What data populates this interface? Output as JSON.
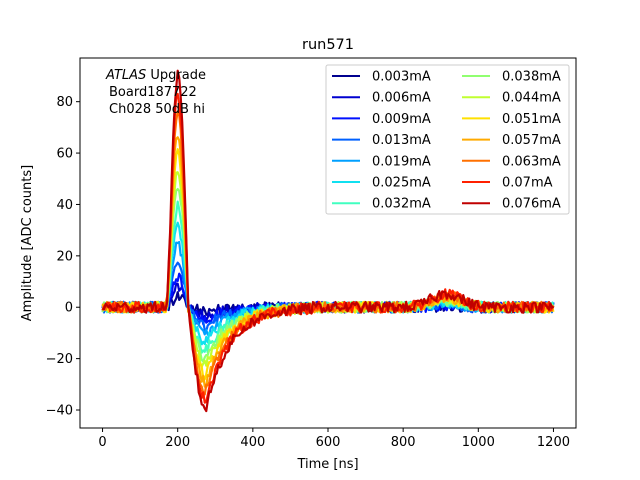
{
  "chart_data": {
    "type": "line",
    "title": "run571",
    "xlabel": "Time [ns]",
    "ylabel": "Amplitude [ADC counts]",
    "xlim": [
      -60,
      1260
    ],
    "ylim": [
      -47,
      97
    ],
    "xticks": [
      0,
      200,
      400,
      600,
      800,
      1000,
      1200
    ],
    "yticks": [
      -40,
      -20,
      0,
      20,
      40,
      60,
      80
    ],
    "grid": false,
    "legend_position": "upper-right",
    "legend_columns": 2,
    "annotation": {
      "line1_italic": "ATLAS",
      "line1_rest": " Upgrade",
      "line2": "Board187722",
      "line3": "Ch028 50dB hi"
    },
    "series": [
      {
        "name": "0.003mA",
        "color": "#00008f",
        "peak": 3.8,
        "undershoot": -1.6
      },
      {
        "name": "0.006mA",
        "color": "#0000d0",
        "peak": 8.0,
        "undershoot": -3.4
      },
      {
        "name": "0.009mA",
        "color": "#0010ff",
        "peak": 11.5,
        "undershoot": -5.0
      },
      {
        "name": "0.013mA",
        "color": "#0060ff",
        "peak": 16.5,
        "undershoot": -7.2
      },
      {
        "name": "0.019mA",
        "color": "#00a0ff",
        "peak": 24.0,
        "undershoot": -10.5
      },
      {
        "name": "0.025mA",
        "color": "#10e0f0",
        "peak": 31.0,
        "undershoot": -13.5
      },
      {
        "name": "0.032mA",
        "color": "#40ffc0",
        "peak": 39.0,
        "undershoot": -17.0
      },
      {
        "name": "0.038mA",
        "color": "#90ff70",
        "peak": 46.0,
        "undershoot": -20.0
      },
      {
        "name": "0.044mA",
        "color": "#c0ff30",
        "peak": 53.0,
        "undershoot": -23.0
      },
      {
        "name": "0.051mA",
        "color": "#ffe000",
        "peak": 61.0,
        "undershoot": -26.5
      },
      {
        "name": "0.057mA",
        "color": "#ffaa00",
        "peak": 68.0,
        "undershoot": -29.5
      },
      {
        "name": "0.063mA",
        "color": "#ff7000",
        "peak": 75.0,
        "undershoot": -32.5
      },
      {
        "name": "0.07mA",
        "color": "#ff2000",
        "peak": 83.0,
        "undershoot": -36.0
      },
      {
        "name": "0.076mA",
        "color": "#c00000",
        "peak": 90.0,
        "undershoot": -39.5
      }
    ],
    "pulse_shape": {
      "baseline": 0,
      "rise_start_ns": 170,
      "peak_ns": 200,
      "zero_cross_ns": 228,
      "undershoot_ns": 275,
      "recovery_end_ns": 560,
      "bump_ns": 915,
      "bump_fraction": 0.06,
      "record_end_ns": 1200,
      "sample_step_ns": 4
    }
  }
}
